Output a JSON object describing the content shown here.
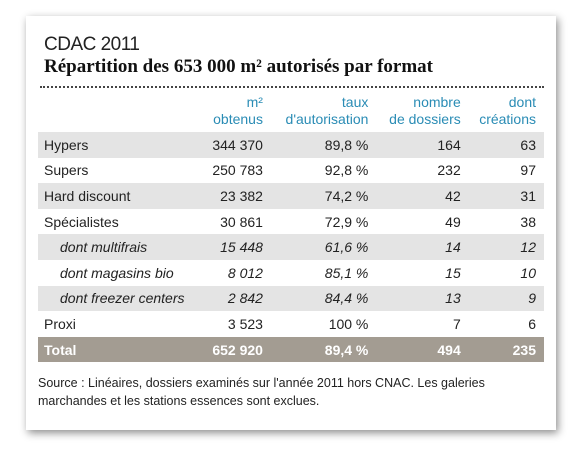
{
  "header": {
    "kicker": "CDAC 2011",
    "title": "Répartition des 653 000 m² autorisés par format"
  },
  "table": {
    "columns": [
      [
        "m²",
        "obtenus"
      ],
      [
        "taux",
        "d'autorisation"
      ],
      [
        "nombre",
        "de dossiers"
      ],
      [
        "dont",
        "créations"
      ]
    ],
    "rows": [
      [
        "Hypers",
        "344 370",
        "89,8 %",
        "164",
        "63"
      ],
      [
        "Supers",
        "250 783",
        "92,8 %",
        "232",
        "97"
      ],
      [
        "Hard discount",
        "23 382",
        "74,2 %",
        "42",
        "31"
      ],
      [
        "Spécialistes",
        "30 861",
        "72,9 %",
        "49",
        "38"
      ],
      [
        "dont multifrais",
        "15 448",
        "61,6 %",
        "14",
        "12"
      ],
      [
        "dont magasins bio",
        "8 012",
        "85,1 %",
        "15",
        "10"
      ],
      [
        "dont freezer centers",
        "2 842",
        "84,4 %",
        "13",
        "9"
      ],
      [
        "Proxi",
        "3 523",
        "100 %",
        "7",
        "6"
      ]
    ],
    "total": [
      "Total",
      "652 920",
      "89,4 %",
      "494",
      "235"
    ]
  },
  "source": "Source : Linéaires, dossiers examinés sur l'année 2011 hors CNAC. Les galeries marchandes et les stations essences sont exclues."
}
